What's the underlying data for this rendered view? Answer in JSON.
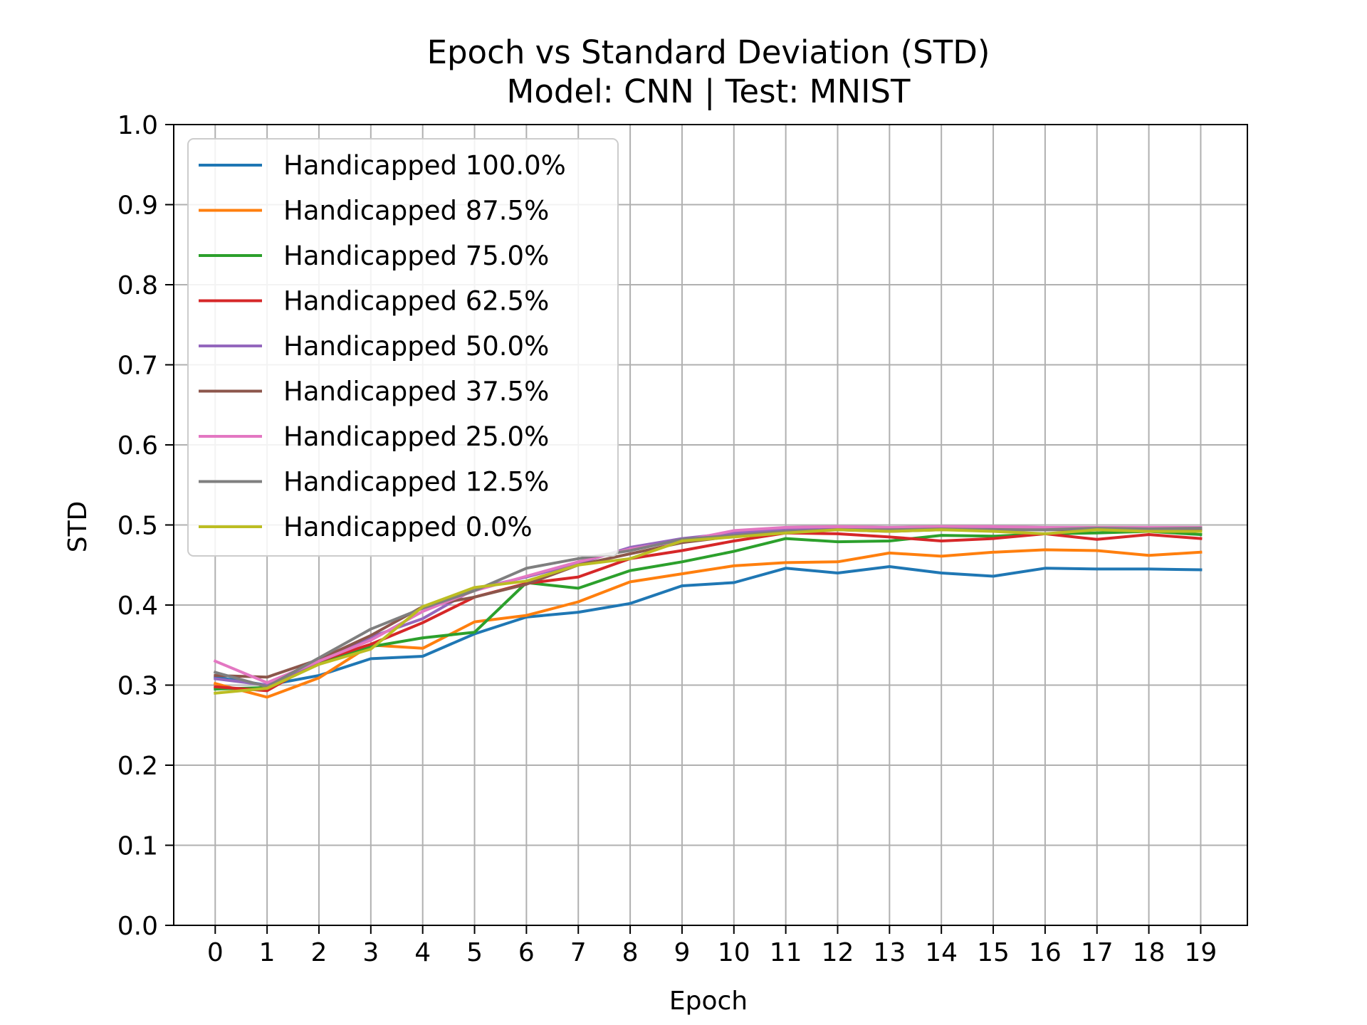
{
  "chart_data": {
    "type": "line",
    "title": "Epoch vs Standard Deviation (STD)",
    "subtitle": "Model: CNN | Test: MNIST",
    "xlabel": "Epoch",
    "ylabel": "STD",
    "ylim": [
      0.0,
      1.0
    ],
    "xlim": [
      -0.8,
      19.9
    ],
    "grid": true,
    "legend_position": "upper-left",
    "x": [
      0,
      1,
      2,
      3,
      4,
      5,
      6,
      7,
      8,
      9,
      10,
      11,
      12,
      13,
      14,
      15,
      16,
      17,
      18,
      19
    ],
    "x_ticks": [
      "0",
      "1",
      "2",
      "3",
      "4",
      "5",
      "6",
      "7",
      "8",
      "9",
      "10",
      "11",
      "12",
      "13",
      "14",
      "15",
      "16",
      "17",
      "18",
      "19"
    ],
    "y_ticks": [
      "0.0",
      "0.1",
      "0.2",
      "0.3",
      "0.4",
      "0.5",
      "0.6",
      "0.7",
      "0.8",
      "0.9",
      "1.0"
    ],
    "series": [
      {
        "name": "Handicapped 100.0%",
        "color": "#1f77b4",
        "values": [
          0.31,
          0.3,
          0.312,
          0.333,
          0.336,
          0.364,
          0.385,
          0.391,
          0.402,
          0.424,
          0.428,
          0.446,
          0.44,
          0.448,
          0.44,
          0.436,
          0.446,
          0.445,
          0.445,
          0.444
        ]
      },
      {
        "name": "Handicapped 87.5%",
        "color": "#ff7f0e",
        "values": [
          0.302,
          0.285,
          0.309,
          0.35,
          0.346,
          0.379,
          0.387,
          0.404,
          0.429,
          0.439,
          0.449,
          0.453,
          0.454,
          0.465,
          0.461,
          0.466,
          0.469,
          0.468,
          0.462,
          0.466
        ]
      },
      {
        "name": "Handicapped 75.0%",
        "color": "#2ca02c",
        "values": [
          0.295,
          0.297,
          0.327,
          0.348,
          0.359,
          0.366,
          0.428,
          0.421,
          0.443,
          0.454,
          0.467,
          0.483,
          0.479,
          0.48,
          0.487,
          0.486,
          0.489,
          0.49,
          0.492,
          0.488
        ]
      },
      {
        "name": "Handicapped 62.5%",
        "color": "#d62728",
        "values": [
          0.298,
          0.293,
          0.33,
          0.351,
          0.378,
          0.41,
          0.427,
          0.435,
          0.458,
          0.468,
          0.48,
          0.49,
          0.489,
          0.485,
          0.48,
          0.483,
          0.489,
          0.482,
          0.488,
          0.483
        ]
      },
      {
        "name": "Handicapped 50.0%",
        "color": "#9467bd",
        "values": [
          0.308,
          0.3,
          0.33,
          0.36,
          0.383,
          0.42,
          0.435,
          0.452,
          0.472,
          0.483,
          0.49,
          0.494,
          0.496,
          0.494,
          0.495,
          0.495,
          0.494,
          0.495,
          0.495,
          0.495
        ]
      },
      {
        "name": "Handicapped 37.5%",
        "color": "#8c564b",
        "values": [
          0.312,
          0.31,
          0.332,
          0.362,
          0.398,
          0.41,
          0.426,
          0.45,
          0.464,
          0.478,
          0.486,
          0.492,
          0.494,
          0.492,
          0.494,
          0.494,
          0.494,
          0.494,
          0.494,
          0.494
        ]
      },
      {
        "name": "Handicapped 25.0%",
        "color": "#e377c2",
        "values": [
          0.33,
          0.303,
          0.33,
          0.356,
          0.392,
          0.418,
          0.436,
          0.454,
          0.47,
          0.48,
          0.493,
          0.497,
          0.498,
          0.497,
          0.498,
          0.498,
          0.497,
          0.497,
          0.497,
          0.497
        ]
      },
      {
        "name": "Handicapped 12.5%",
        "color": "#7f7f7f",
        "values": [
          0.316,
          0.298,
          0.334,
          0.37,
          0.396,
          0.418,
          0.446,
          0.458,
          0.468,
          0.482,
          0.487,
          0.492,
          0.494,
          0.494,
          0.495,
          0.494,
          0.494,
          0.496,
          0.495,
          0.496
        ]
      },
      {
        "name": "Handicapped 0.0%",
        "color": "#bcbd22",
        "values": [
          0.29,
          0.296,
          0.326,
          0.345,
          0.398,
          0.422,
          0.43,
          0.45,
          0.458,
          0.48,
          0.485,
          0.49,
          0.494,
          0.492,
          0.494,
          0.492,
          0.489,
          0.494,
          0.492,
          0.492
        ]
      }
    ]
  }
}
